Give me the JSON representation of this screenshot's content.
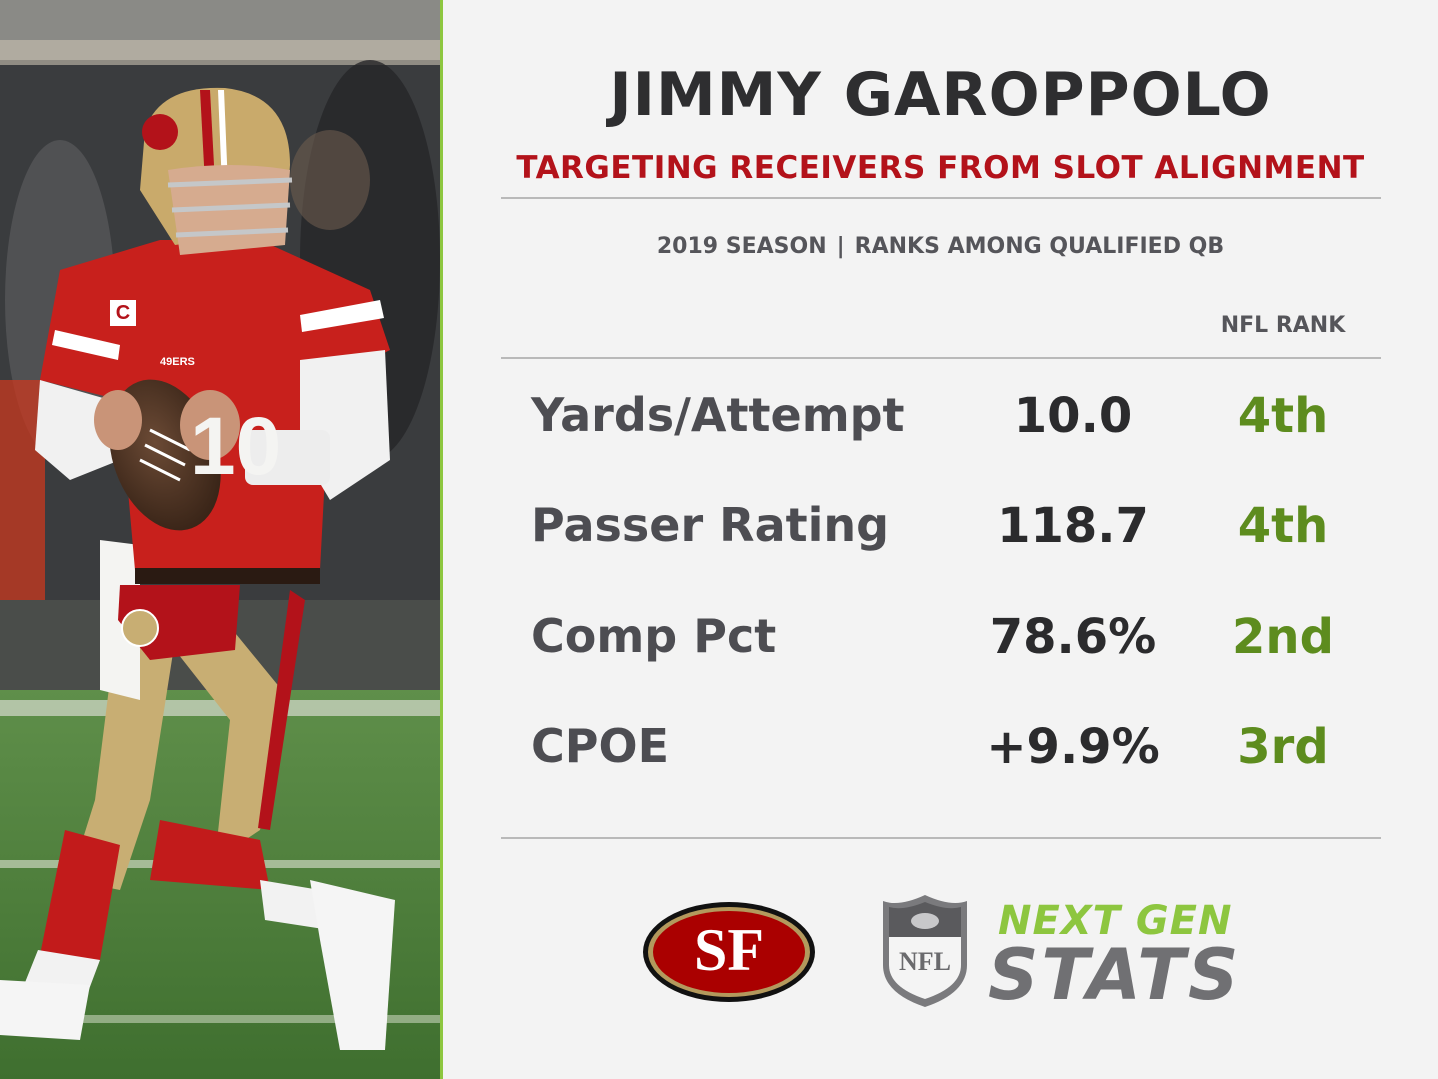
{
  "player": {
    "name": "JIMMY GAROPPOLO",
    "subtitle": "TARGETING RECEIVERS FROM SLOT ALIGNMENT"
  },
  "context": {
    "season": "2019 SEASON",
    "separator": "|",
    "ranks_note": "RANKS AMONG QUALIFIED QB",
    "rank_header": "NFL RANK"
  },
  "stats": [
    {
      "label": "Yards/Attempt",
      "value": "10.0",
      "rank": "4th"
    },
    {
      "label": "Passer Rating",
      "value": "118.7",
      "rank": "4th"
    },
    {
      "label": "Comp Pct",
      "value": "78.6%",
      "rank": "2nd"
    },
    {
      "label": "CPOE",
      "value": "+9.9%",
      "rank": "3rd"
    }
  ],
  "logos": {
    "team_logo": "SF",
    "nfl_shield": "NFL",
    "brand_top": "NEXT GEN",
    "brand_bottom": "STATS"
  },
  "photo": {
    "jersey_number": "10",
    "captain_patch": "C",
    "wordmark": "49ERS"
  },
  "colors": {
    "accent_green": "#8dc63f",
    "rank_green": "#5d8c1e",
    "title_red": "#b3121a",
    "team_red": "#aa0000",
    "team_gold": "#b3995d"
  }
}
